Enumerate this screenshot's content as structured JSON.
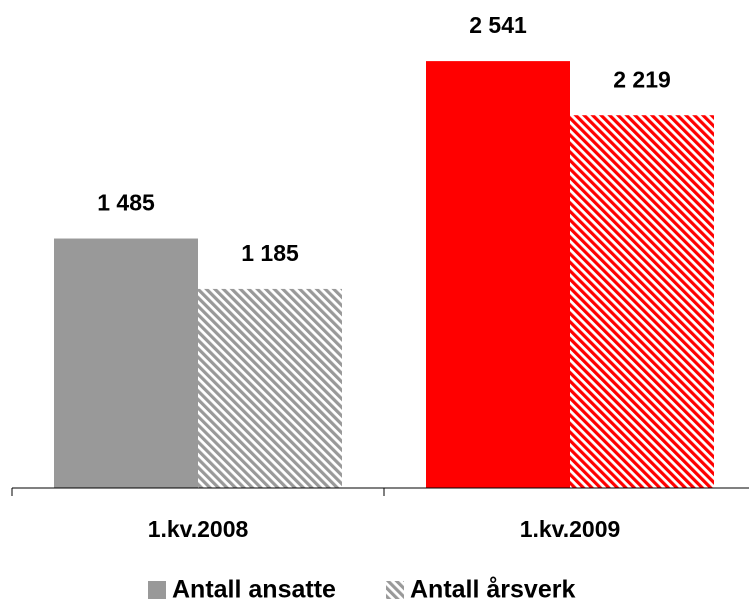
{
  "chart_data": {
    "type": "bar",
    "categories": [
      "1.kv.2008",
      "1.kv.2009"
    ],
    "series": [
      {
        "name": "Antall ansatte",
        "color": "#999999",
        "point_colors": [
          "#999999",
          "#ff0000"
        ],
        "fill": "solid",
        "values": [
          1485,
          2541
        ],
        "value_labels": [
          "1 485",
          "2 541"
        ]
      },
      {
        "name": "Antall årsverk",
        "color": "#999999",
        "point_colors": [
          "#999999",
          "#ff0000"
        ],
        "fill": "hatch",
        "values": [
          1185,
          2219
        ],
        "value_labels": [
          "1 185",
          "2 219"
        ]
      }
    ],
    "ylim": [
      0,
      3000
    ],
    "grid": false,
    "legend": "bottom"
  }
}
